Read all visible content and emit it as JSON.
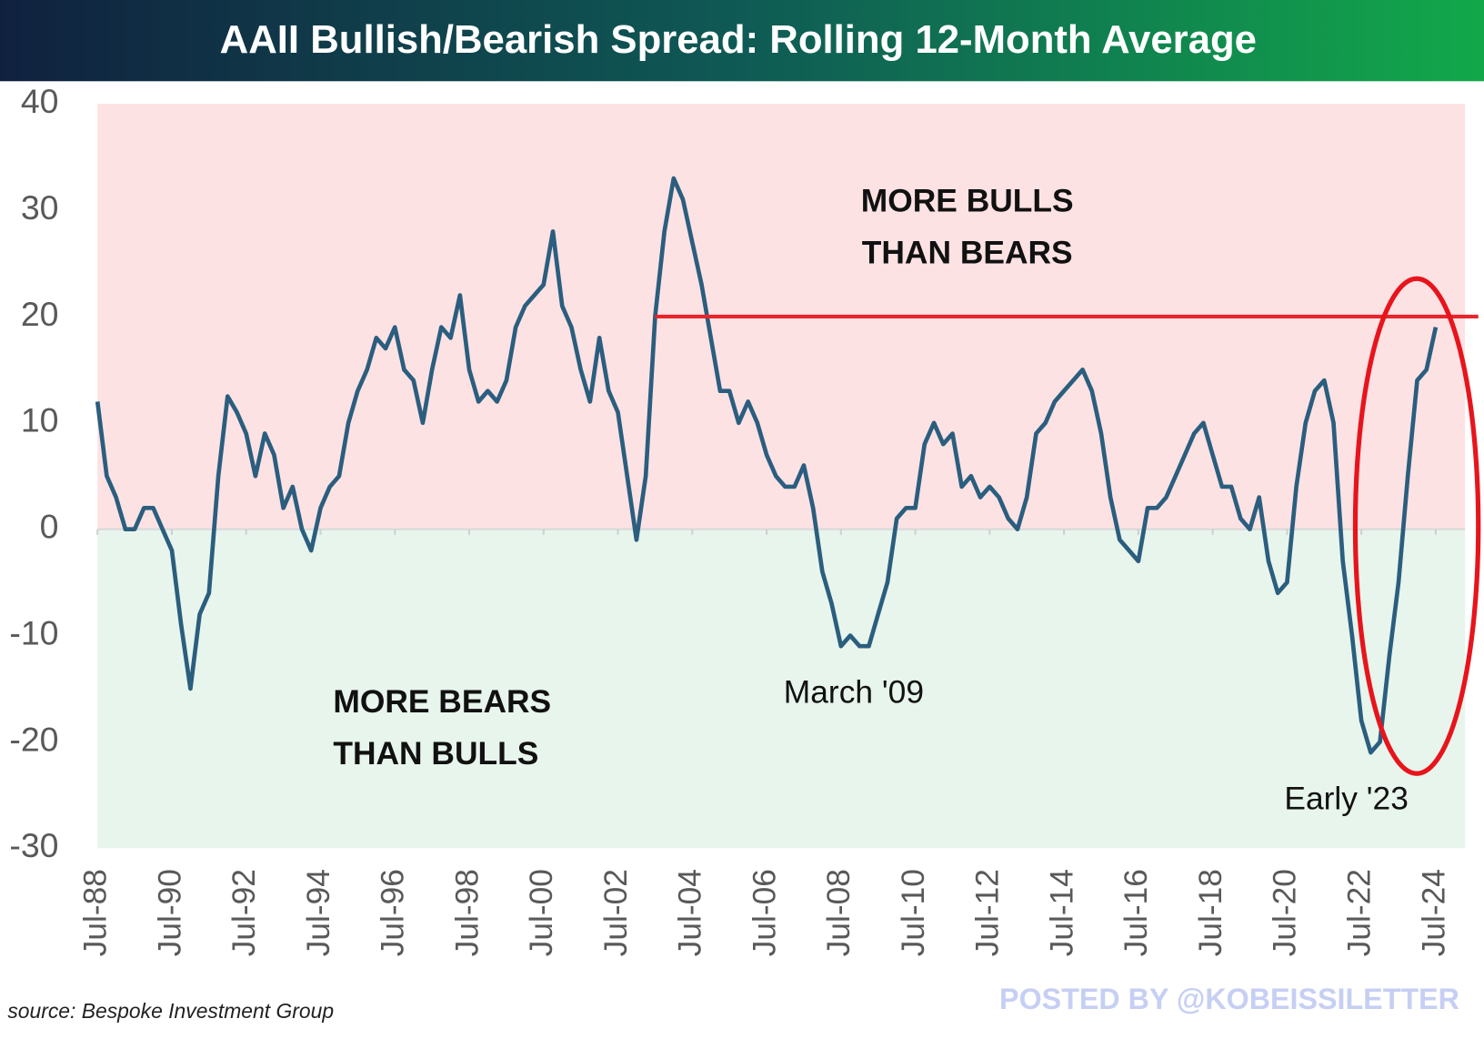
{
  "chart_data": {
    "type": "line",
    "title": "AAII Bullish/Bearish Spread: Rolling 12-Month Average",
    "source": "source: Bespoke Investment Group",
    "watermark": "POSTED BY @KOBEISSILETTER",
    "ylim": [
      -30,
      40
    ],
    "yticks": [
      -30,
      -20,
      -10,
      0,
      10,
      20,
      30,
      40
    ],
    "xlim": [
      "1988-07",
      "2024-07"
    ],
    "xticks": [
      {
        "value": "1988-07",
        "label": "Jul-88"
      },
      {
        "value": "1990-07",
        "label": "Jul-90"
      },
      {
        "value": "1992-07",
        "label": "Jul-92"
      },
      {
        "value": "1994-07",
        "label": "Jul-94"
      },
      {
        "value": "1996-07",
        "label": "Jul-96"
      },
      {
        "value": "1998-07",
        "label": "Jul-98"
      },
      {
        "value": "2000-07",
        "label": "Jul-00"
      },
      {
        "value": "2002-07",
        "label": "Jul-02"
      },
      {
        "value": "2004-07",
        "label": "Jul-04"
      },
      {
        "value": "2006-07",
        "label": "Jul-06"
      },
      {
        "value": "2008-07",
        "label": "Jul-08"
      },
      {
        "value": "2010-07",
        "label": "Jul-10"
      },
      {
        "value": "2012-07",
        "label": "Jul-12"
      },
      {
        "value": "2014-07",
        "label": "Jul-14"
      },
      {
        "value": "2016-07",
        "label": "Jul-16"
      },
      {
        "value": "2018-07",
        "label": "Jul-18"
      },
      {
        "value": "2020-07",
        "label": "Jul-20"
      },
      {
        "value": "2022-07",
        "label": "Jul-22"
      },
      {
        "value": "2024-07",
        "label": "Jul-24"
      }
    ],
    "positive_color": "#fde2e4",
    "negative_color": "#e7f5ec",
    "x": [
      "1988-07",
      "1988-10",
      "1989-01",
      "1989-04",
      "1989-07",
      "1989-10",
      "1990-01",
      "1990-04",
      "1990-07",
      "1990-10",
      "1991-01",
      "1991-04",
      "1991-07",
      "1991-10",
      "1992-01",
      "1992-04",
      "1992-07",
      "1992-10",
      "1993-01",
      "1993-04",
      "1993-07",
      "1993-10",
      "1994-01",
      "1994-04",
      "1994-07",
      "1994-10",
      "1995-01",
      "1995-04",
      "1995-07",
      "1995-10",
      "1996-01",
      "1996-04",
      "1996-07",
      "1996-10",
      "1997-01",
      "1997-04",
      "1997-07",
      "1997-10",
      "1998-01",
      "1998-04",
      "1998-07",
      "1998-10",
      "1999-01",
      "1999-04",
      "1999-07",
      "1999-10",
      "2000-01",
      "2000-04",
      "2000-07",
      "2000-10",
      "2001-01",
      "2001-04",
      "2001-07",
      "2001-10",
      "2002-01",
      "2002-04",
      "2002-07",
      "2002-10",
      "2003-01",
      "2003-04",
      "2003-07",
      "2003-10",
      "2004-01",
      "2004-04",
      "2004-07",
      "2004-10",
      "2005-01",
      "2005-04",
      "2005-07",
      "2005-10",
      "2006-01",
      "2006-04",
      "2006-07",
      "2006-10",
      "2007-01",
      "2007-04",
      "2007-07",
      "2007-10",
      "2008-01",
      "2008-04",
      "2008-07",
      "2008-10",
      "2009-01",
      "2009-04",
      "2009-07",
      "2009-10",
      "2010-01",
      "2010-04",
      "2010-07",
      "2010-10",
      "2011-01",
      "2011-04",
      "2011-07",
      "2011-10",
      "2012-01",
      "2012-04",
      "2012-07",
      "2012-10",
      "2013-01",
      "2013-04",
      "2013-07",
      "2013-10",
      "2014-01",
      "2014-04",
      "2014-07",
      "2014-10",
      "2015-01",
      "2015-04",
      "2015-07",
      "2015-10",
      "2016-01",
      "2016-04",
      "2016-07",
      "2016-10",
      "2017-01",
      "2017-04",
      "2017-07",
      "2017-10",
      "2018-01",
      "2018-04",
      "2018-07",
      "2018-10",
      "2019-01",
      "2019-04",
      "2019-07",
      "2019-10",
      "2020-01",
      "2020-04",
      "2020-07",
      "2020-10",
      "2021-01",
      "2021-04",
      "2021-07",
      "2021-10",
      "2022-01",
      "2022-04",
      "2022-07",
      "2022-10",
      "2023-01",
      "2023-04",
      "2023-07",
      "2023-10",
      "2024-01",
      "2024-04",
      "2024-07"
    ],
    "series": [
      {
        "name": "Bullish/Bearish Spread",
        "color": "#2b5e7e",
        "values": [
          12,
          5,
          3,
          0,
          0,
          2,
          2,
          0,
          -2,
          -9,
          -15,
          -8,
          -6,
          5,
          12.5,
          11,
          9,
          5,
          9,
          7,
          2,
          4,
          0,
          -2,
          2,
          4,
          5,
          10,
          13,
          15,
          18,
          17,
          19,
          15,
          14,
          10,
          15,
          19,
          18,
          22,
          15,
          12,
          13,
          12,
          14,
          19,
          21,
          22,
          23,
          28,
          21,
          19,
          15,
          12,
          18,
          13,
          11,
          5,
          -1,
          5,
          20,
          28,
          33,
          31,
          27,
          23,
          18,
          13,
          13,
          10,
          12,
          10,
          7,
          5,
          4,
          4,
          6,
          2,
          -4,
          -7,
          -11,
          -10,
          -11,
          -11,
          -8,
          -5,
          1,
          2,
          2,
          8,
          10,
          8,
          9,
          4,
          5,
          3,
          4,
          3,
          1,
          0,
          3,
          9,
          10,
          12,
          13,
          14,
          15,
          13,
          9,
          3,
          -1,
          -2,
          -3,
          2,
          2,
          3,
          5,
          7,
          9,
          10,
          7,
          4,
          4,
          1,
          0,
          3,
          -3,
          -6,
          -5,
          4,
          10,
          13,
          14,
          10,
          -3,
          -10,
          -18,
          -21,
          -20,
          -12,
          -5,
          5,
          14,
          15,
          19
        ]
      }
    ],
    "reference_line": {
      "value": 20,
      "from": "2003-07",
      "color": "#e8252b"
    },
    "annotations": [
      {
        "lines": [
          "MORE BULLS",
          "THAN BEARS"
        ]
      },
      {
        "lines": [
          "MORE BEARS",
          "THAN BULLS"
        ]
      },
      {
        "lines": [
          "March '09"
        ]
      },
      {
        "lines": [
          "Early '23"
        ]
      }
    ]
  }
}
